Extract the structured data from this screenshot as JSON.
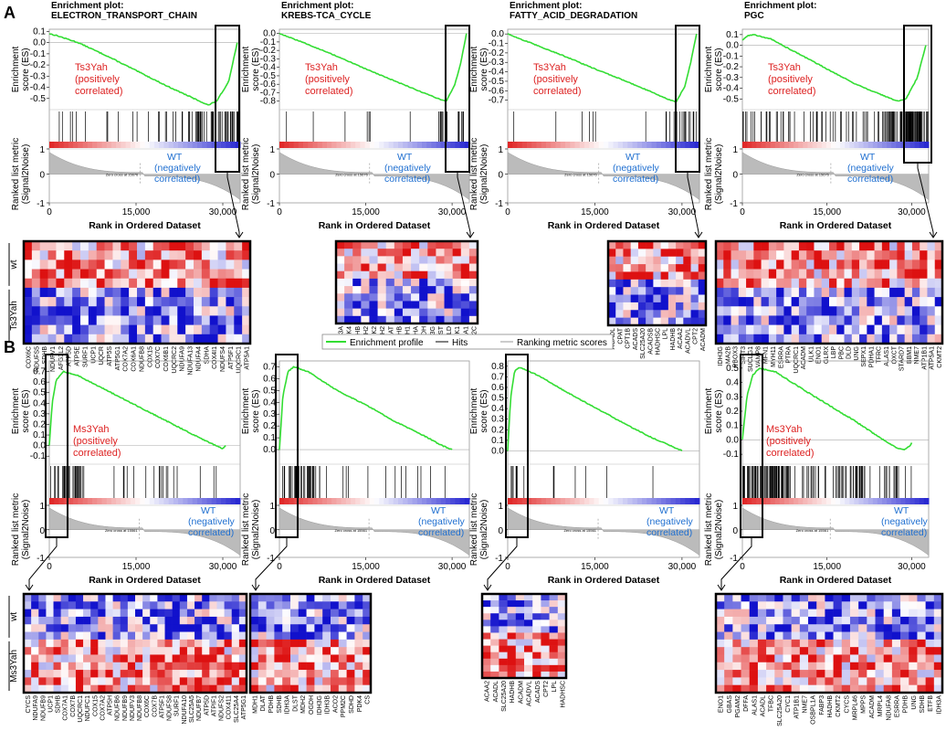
{
  "panels": [
    {
      "label": "A"
    },
    {
      "label": "B"
    }
  ],
  "common": {
    "ylabel_es": "Enrichment score (ES)",
    "ylabel_rank": "Ranked list metric (Signal2Noise)",
    "xlabel": "Rank in Ordered Dataset",
    "wt_label": "WT (negatively correlated)",
    "zero_cross_a": "Zero cross at 15676",
    "zero_cross_b": "Zero cross at 15561",
    "row_label_wt": "wt",
    "row_label_ts": "Ts3Yah",
    "row_label_ms": "Ms3Yah"
  },
  "legend": {
    "items": [
      "Enrichment profile",
      "Hits",
      "Ranking metric scores"
    ],
    "colors": [
      "#33dd33",
      "#000000",
      "#999999"
    ]
  },
  "colors": {
    "es_line": "#33dd33",
    "pos_text": "#dd2222",
    "neg_text": "#1f6fd0",
    "heat_red": "#dd1111",
    "heat_blue": "#1111cc"
  },
  "chart_data": [
    {
      "type": "line",
      "panel": "A",
      "title": "Enrichment plot: ELECTRON_TRANSPORT_CHAIN",
      "ylim": [
        -0.6,
        0.12
      ],
      "yticks": [
        0.1,
        0,
        -0.1,
        -0.2,
        -0.3,
        -0.4,
        -0.5
      ],
      "xticks": [
        0,
        15000,
        30000
      ],
      "xlim": [
        0,
        33000
      ],
      "es": [
        [
          0,
          0.08
        ],
        [
          1500,
          0.06
        ],
        [
          5000,
          0.0
        ],
        [
          10000,
          -0.12
        ],
        [
          15000,
          -0.25
        ],
        [
          20000,
          -0.38
        ],
        [
          25000,
          -0.5
        ],
        [
          27500,
          -0.56
        ],
        [
          29000,
          -0.52
        ],
        [
          31000,
          -0.35
        ],
        [
          32500,
          0.0
        ]
      ],
      "annotation": "Ts3Yah (positively correlated)",
      "hit_density": "right",
      "zero_cross": 15676,
      "heatmap": {
        "rows": {
          "wt": 5,
          "mutant": 6
        },
        "genes": [
          "COX6C",
          "NDUFS5",
          "SDHB",
          "NDUFV1",
          "AFG3L2",
          "ATP5D",
          "ATP5E",
          "SURF1",
          "UCP1",
          "UQCR",
          "ATP5S",
          "ATP5G1",
          "COX7A2",
          "COX6A1",
          "NDUFB8",
          "COX15",
          "COX7C",
          "COX6B1",
          "UQCRC2",
          "NDUFA9",
          "NDUFA13",
          "NDUFA4",
          "SDHA",
          "COX4I1",
          "NDUFS4",
          "ATP5F1",
          "UQCRC1",
          "ATP5A1"
        ]
      }
    },
    {
      "type": "line",
      "panel": "A",
      "title": "Enrichment plot: KREBS-TCA_CYCLE",
      "ylim": [
        -0.9,
        0.05
      ],
      "yticks": [
        0.0,
        -0.1,
        -0.2,
        -0.3,
        -0.4,
        -0.5,
        -0.6,
        -0.7,
        -0.8
      ],
      "xticks": [
        0,
        15000,
        30000
      ],
      "xlim": [
        0,
        33000
      ],
      "es": [
        [
          0,
          0.0
        ],
        [
          5000,
          -0.13
        ],
        [
          10000,
          -0.27
        ],
        [
          15000,
          -0.42
        ],
        [
          20000,
          -0.56
        ],
        [
          25000,
          -0.7
        ],
        [
          28000,
          -0.78
        ],
        [
          29000,
          -0.8
        ],
        [
          30500,
          -0.6
        ],
        [
          31500,
          -0.35
        ],
        [
          32500,
          0.0
        ]
      ],
      "annotation": "Ts3Yah (positively correlated)",
      "hit_density": "sparse-right",
      "zero_cross": 15676,
      "heatmap": {
        "rows": {
          "wt": 5,
          "mutant": 6
        },
        "genes": [
          "IDH3A",
          "PDK4",
          "SDHB",
          "MDH2",
          "PDK2",
          "IDH2",
          "DLAT",
          "PDHB",
          "MDH1",
          "SDHA",
          "OGDH",
          "IDH3G",
          "DLST",
          "DLD",
          "PDK1",
          "PDHA1",
          "PPM2C"
        ]
      }
    },
    {
      "type": "line",
      "panel": "A",
      "title": "Enrichment plot: FATTY_ACID_DEGRADATION",
      "ylim": [
        -0.8,
        0.05
      ],
      "yticks": [
        0.0,
        -0.1,
        -0.2,
        -0.3,
        -0.4,
        -0.5,
        -0.6,
        -0.7
      ],
      "xticks": [
        0,
        15000,
        30000
      ],
      "xlim": [
        0,
        33000
      ],
      "es": [
        [
          0,
          0.0
        ],
        [
          5000,
          -0.12
        ],
        [
          10000,
          -0.24
        ],
        [
          15000,
          -0.37
        ],
        [
          20000,
          -0.49
        ],
        [
          25000,
          -0.62
        ],
        [
          28000,
          -0.7
        ],
        [
          29000,
          -0.72
        ],
        [
          30500,
          -0.55
        ],
        [
          31500,
          -0.3
        ],
        [
          32500,
          0.0
        ]
      ],
      "annotation": "Ts3Yah (positively correlated)",
      "hit_density": "sparse-right",
      "zero_cross": 15676,
      "heatmap": {
        "rows": {
          "wt": 5,
          "mutant": 6
        },
        "genes": [
          "ACADL",
          "CPAT",
          "CPT1B",
          "ACADS",
          "SLC25A20",
          "ACADSB",
          "HADHSC",
          "LPL",
          "HADHB",
          "ACAA2",
          "ACADVL",
          "CPT2",
          "ACADM"
        ]
      }
    },
    {
      "type": "line",
      "panel": "A",
      "title": "Enrichment plot: PGC",
      "ylim": [
        -0.6,
        0.15
      ],
      "yticks": [
        0.1,
        0.0,
        -0.1,
        -0.2,
        -0.3,
        -0.4,
        -0.5
      ],
      "xticks": [
        0,
        15000,
        30000
      ],
      "xlim": [
        0,
        33000
      ],
      "es": [
        [
          0,
          0.05
        ],
        [
          1000,
          0.09
        ],
        [
          2000,
          0.1
        ],
        [
          5000,
          0.06
        ],
        [
          10000,
          -0.08
        ],
        [
          15000,
          -0.22
        ],
        [
          20000,
          -0.36
        ],
        [
          25000,
          -0.47
        ],
        [
          27500,
          -0.52
        ],
        [
          29000,
          -0.5
        ],
        [
          31000,
          -0.3
        ],
        [
          32000,
          -0.1
        ],
        [
          32500,
          0.0
        ]
      ],
      "annotation": "Ts3Yah (positively correlated)",
      "hit_density": "dense-right",
      "zero_cross": 15676,
      "heatmap": {
        "rows": {
          "wt": 5,
          "mutant": 6
        },
        "genes": [
          "IDH3G",
          "MA2B",
          "PBOX3",
          "SIRT3",
          "SUCLG1",
          "VAMP8",
          "MFN1",
          "MYH11",
          "ESRRA",
          "PTRA",
          "UQCRC1",
          "ACADM",
          "ULK1",
          "ENO1",
          "GLRX",
          "LBP",
          "PBC",
          "DLD",
          "UNG",
          "SEPX1",
          "PDHA1",
          "TFRC",
          "ALAS1",
          "OXCT",
          "STARD7",
          "BBM1",
          "NME7",
          "ATP1B1",
          "ATP5A1",
          "CKMT2"
        ]
      }
    },
    {
      "type": "line",
      "panel": "B",
      "title": "",
      "ylim": [
        -0.15,
        0.8
      ],
      "yticks": [
        0.7,
        0.6,
        0.5,
        0.4,
        0.3,
        0.2,
        0.1,
        0.0,
        -0.1
      ],
      "xticks": [
        0,
        15000,
        30000
      ],
      "xlim": [
        0,
        33000
      ],
      "es": [
        [
          0,
          0.0
        ],
        [
          500,
          0.4
        ],
        [
          1200,
          0.62
        ],
        [
          2500,
          0.7
        ],
        [
          5000,
          0.66
        ],
        [
          10000,
          0.52
        ],
        [
          15000,
          0.38
        ],
        [
          20000,
          0.24
        ],
        [
          25000,
          0.1
        ],
        [
          28000,
          0.02
        ],
        [
          30000,
          -0.03
        ],
        [
          30500,
          0.0
        ]
      ],
      "annotation": "Ms3Yah (positively correlated)",
      "hit_density": "left",
      "zero_cross": 15561,
      "heatmap": {
        "rows": {
          "wt": 6,
          "mutant": 7
        },
        "genes": [
          "CYCS",
          "NDUFA9",
          "NDUFB9",
          "UCP1",
          "SDHB",
          "COX7A1",
          "COX7B",
          "UQCRC1",
          "NDUFC1",
          "COX15",
          "COX7A2",
          "ATP5H",
          "NDUFB6",
          "NDUFB9",
          "NDUFV3",
          "NDUFB8",
          "COX6C",
          "COX7B",
          "ATP5F1",
          "NDUFS8",
          "SURF1",
          "NDUFA10",
          "SLC25A5",
          "NDUFB7",
          "ATP5D",
          "ATPIF1",
          "NDUFS2",
          "COX411",
          "SLC25A4",
          "ATP5G1"
        ]
      }
    },
    {
      "type": "line",
      "panel": "B",
      "title": "",
      "ylim": [
        -0.1,
        0.75
      ],
      "yticks": [
        0.7,
        0.6,
        0.5,
        0.4,
        0.3,
        0.2,
        0.1,
        0.0
      ],
      "xticks": [
        0,
        15000,
        30000
      ],
      "xlim": [
        0,
        33000
      ],
      "es": [
        [
          0,
          0.0
        ],
        [
          600,
          0.45
        ],
        [
          1500,
          0.66
        ],
        [
          2500,
          0.7
        ],
        [
          5000,
          0.66
        ],
        [
          10000,
          0.5
        ],
        [
          15000,
          0.38
        ],
        [
          20000,
          0.24
        ],
        [
          25000,
          0.12
        ],
        [
          28000,
          0.04
        ],
        [
          30000,
          0.0
        ]
      ],
      "annotation": "",
      "hit_density": "left",
      "zero_cross": 15561,
      "heatmap": {
        "rows": {
          "wt": 6,
          "mutant": 7
        },
        "genes": [
          "MDH1",
          "DLAT",
          "PDHB",
          "SDHB",
          "IDH3A",
          "DLST",
          "MDH2",
          "OGDH",
          "IDH3G",
          "IDH3B",
          "ACO2",
          "PPM2C",
          "SDHD",
          "PDK4",
          "CS"
        ]
      }
    },
    {
      "type": "line",
      "panel": "B",
      "title": "",
      "ylim": [
        -0.1,
        0.85
      ],
      "yticks": [
        0.8,
        0.7,
        0.6,
        0.5,
        0.4,
        0.3,
        0.2,
        0.1,
        0.0
      ],
      "xticks": [
        0,
        15000,
        30000
      ],
      "xlim": [
        0,
        33000
      ],
      "es": [
        [
          0,
          0.0
        ],
        [
          500,
          0.5
        ],
        [
          1200,
          0.76
        ],
        [
          2000,
          0.79
        ],
        [
          5000,
          0.72
        ],
        [
          10000,
          0.56
        ],
        [
          15000,
          0.41
        ],
        [
          20000,
          0.26
        ],
        [
          25000,
          0.12
        ],
        [
          28000,
          0.05
        ],
        [
          30000,
          0.0
        ]
      ],
      "annotation": "",
      "hit_density": "sparse-left",
      "zero_cross": 15561,
      "heatmap": {
        "rows": {
          "wt": 6,
          "mutant": 7
        },
        "genes": [
          "ACAA2",
          "ACADL",
          "SLC25A20",
          "HADHB",
          "ACADM",
          "ACADVL",
          "ACADS",
          "CPT2",
          "LPL",
          "HADHSC"
        ]
      }
    },
    {
      "type": "line",
      "panel": "B",
      "title": "",
      "ylim": [
        -0.15,
        0.55
      ],
      "yticks": [
        0.5,
        0.4,
        0.3,
        0.2,
        0.1,
        0.0,
        -0.1
      ],
      "xticks": [
        0,
        15000,
        30000
      ],
      "xlim": [
        0,
        33000
      ],
      "es": [
        [
          0,
          0.0
        ],
        [
          800,
          0.3
        ],
        [
          1800,
          0.45
        ],
        [
          3000,
          0.5
        ],
        [
          6000,
          0.47
        ],
        [
          10000,
          0.37
        ],
        [
          15000,
          0.25
        ],
        [
          20000,
          0.13
        ],
        [
          25000,
          0.0
        ],
        [
          27000,
          -0.05
        ],
        [
          28500,
          -0.07
        ],
        [
          29500,
          -0.05
        ],
        [
          30000,
          -0.02
        ]
      ],
      "annotation": "Ms3Yah (positively correlated)",
      "hit_density": "dense",
      "zero_cross": 15561,
      "heatmap": {
        "rows": {
          "wt": 6,
          "mutant": 7
        },
        "genes": [
          "ENO1",
          "GBAS",
          "PGAM2",
          "DFFA",
          "ALAS1",
          "ACADL",
          "TFBC",
          "SLC25A20",
          "CYC1",
          "ATP1B1",
          "NME7",
          "OSBPL1A",
          "FABP3",
          "HADHB",
          "CKMT2",
          "CYCS",
          "MRPL46",
          "MPPS",
          "ACADM",
          "MRPL4",
          "NDUFA8",
          "ESRRA",
          "PDHB",
          "UNG",
          "SDHB",
          "ETFB",
          "IDH3A"
        ]
      }
    }
  ]
}
